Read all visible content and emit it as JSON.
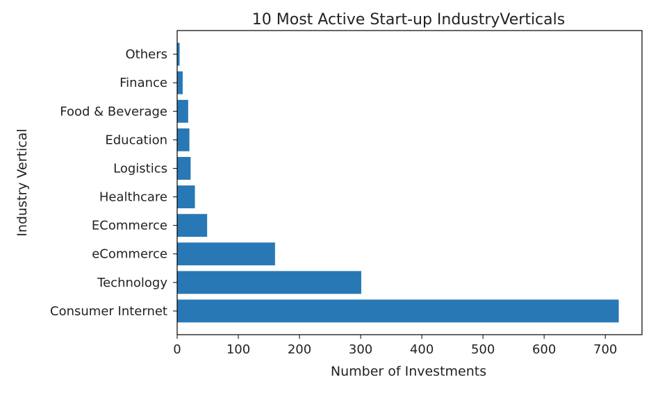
{
  "chart_data": {
    "type": "bar",
    "orientation": "horizontal",
    "title": "10 Most Active Start-up IndustryVerticals",
    "xlabel": "Number of Investments",
    "ylabel": "Industry Vertical",
    "categories": [
      "Consumer Internet",
      "Technology",
      "eCommerce",
      "ECommerce",
      "Healthcare",
      "Logistics",
      "Education",
      "Food & Beverage",
      "Finance",
      "Others"
    ],
    "values": [
      722,
      301,
      160,
      49,
      29,
      22,
      20,
      18,
      9,
      4
    ],
    "xlim": [
      0,
      760
    ],
    "xticks": [
      0,
      100,
      200,
      300,
      400,
      500,
      600,
      700
    ],
    "bar_color": "#2878b5",
    "grid": false
  }
}
